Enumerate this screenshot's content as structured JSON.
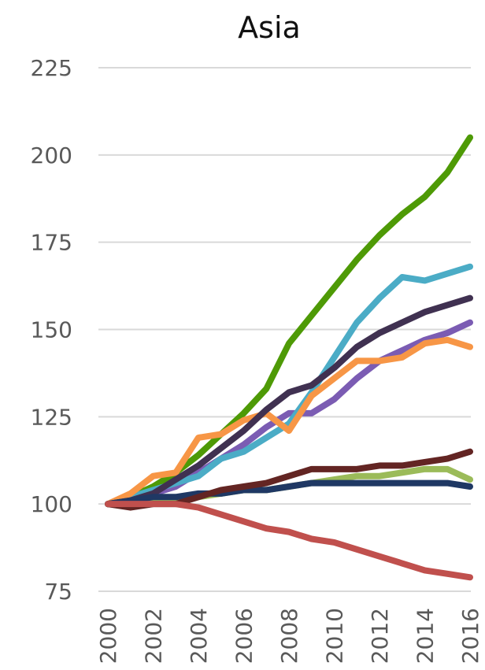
{
  "chart_data": {
    "type": "line",
    "title": "Asia",
    "xlabel": "",
    "ylabel": "",
    "ylim": [
      75,
      225
    ],
    "xlim": [
      2000,
      2016
    ],
    "y_ticks": [
      225,
      200,
      175,
      150,
      125,
      100,
      75
    ],
    "x_ticks": [
      "2000",
      "2002",
      "2004",
      "2006",
      "2008",
      "2010",
      "2012",
      "2014",
      "2016"
    ],
    "grid": true,
    "legend": "none",
    "x": [
      2000,
      2001,
      2002,
      2003,
      2004,
      2005,
      2006,
      2007,
      2008,
      2009,
      2010,
      2011,
      2012,
      2013,
      2014,
      2015,
      2016
    ],
    "series": [
      {
        "color": "#4e9a06",
        "values": [
          100,
          102,
          105,
          109,
          114,
          120,
          126,
          133,
          146,
          154,
          162,
          170,
          177,
          183,
          188,
          195,
          205
        ]
      },
      {
        "color": "#7b5cb3",
        "values": [
          100,
          101,
          103,
          105,
          109,
          113,
          117,
          122,
          126,
          126,
          130,
          136,
          141,
          144,
          147,
          149,
          152
        ]
      },
      {
        "color": "#4bacc6",
        "values": [
          100,
          102,
          104,
          106,
          108,
          113,
          115,
          119,
          123,
          132,
          142,
          152,
          159,
          165,
          164,
          166,
          168
        ]
      },
      {
        "color": "#f79646",
        "values": [
          100,
          103,
          108,
          109,
          119,
          120,
          124,
          126,
          121,
          131,
          136,
          141,
          141,
          142,
          146,
          147,
          145
        ]
      },
      {
        "color": "#403151",
        "values": [
          100,
          101,
          103,
          107,
          111,
          116,
          121,
          127,
          132,
          134,
          139,
          145,
          149,
          152,
          155,
          157,
          159
        ]
      },
      {
        "color": "#9bbb59",
        "values": [
          100,
          100,
          101,
          101,
          102,
          103,
          104,
          104,
          105,
          106,
          107,
          108,
          108,
          109,
          110,
          110,
          107
        ]
      },
      {
        "color": "#1f3864",
        "values": [
          100,
          101,
          102,
          102,
          103,
          103,
          104,
          104,
          105,
          106,
          106,
          106,
          106,
          106,
          106,
          106,
          105
        ]
      },
      {
        "color": "#632523",
        "values": [
          100,
          99,
          100,
          100,
          102,
          104,
          105,
          106,
          108,
          110,
          110,
          110,
          111,
          111,
          112,
          113,
          115
        ]
      },
      {
        "color": "#c0504d",
        "values": [
          100,
          100,
          100,
          100,
          99,
          97,
          95,
          93,
          92,
          90,
          89,
          87,
          85,
          83,
          81,
          80,
          79
        ]
      }
    ]
  }
}
